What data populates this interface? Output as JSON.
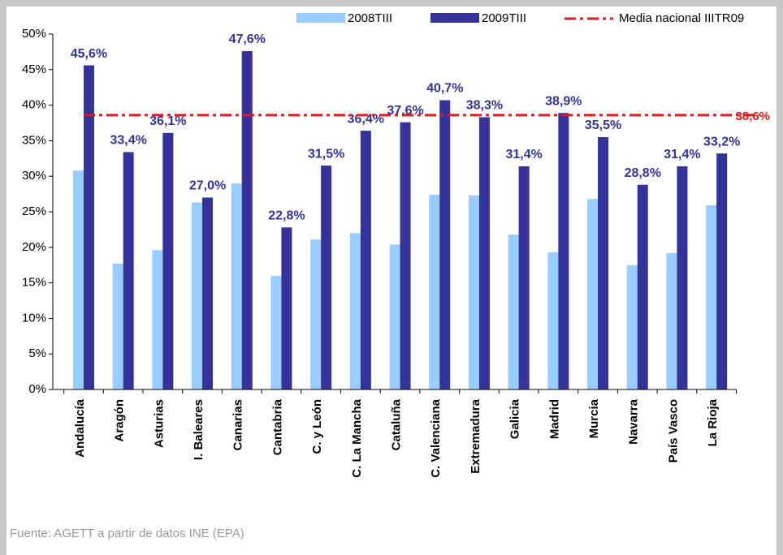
{
  "chart_data": {
    "type": "bar",
    "categories": [
      "Andalucía",
      "Aragón",
      "Asturias",
      "I. Baleares",
      "Canarias",
      "Cantabria",
      "C. y León",
      "C. La Mancha",
      "Cataluña",
      "C. Valenciana",
      "Extremadura",
      "Galicia",
      "Madrid",
      "Murcia",
      "Navarra",
      "País Vasco",
      "La Rioja"
    ],
    "series": [
      {
        "name": "2008TIII",
        "color": "#99ccff",
        "values": [
          30.8,
          17.7,
          19.6,
          26.3,
          29.0,
          16.0,
          21.1,
          22.0,
          20.4,
          27.4,
          27.3,
          21.8,
          19.3,
          26.8,
          17.5,
          19.2,
          25.9
        ]
      },
      {
        "name": "2009TIII",
        "color": "#333399",
        "values": [
          45.6,
          33.4,
          36.1,
          27.0,
          47.6,
          22.8,
          31.5,
          36.4,
          37.6,
          40.7,
          38.3,
          31.4,
          38.9,
          35.5,
          28.8,
          31.4,
          33.2
        ],
        "value_labels": [
          "45,6%",
          "33,4%",
          "36,1%",
          "27,0%",
          "47,6%",
          "22,8%",
          "31,5%",
          "36,4%",
          "37,6%",
          "40,7%",
          "38,3%",
          "31,4%",
          "38,9%",
          "35,5%",
          "28,8%",
          "31,4%",
          "33,2%"
        ]
      }
    ],
    "reference_line": {
      "name": "Media nacional IIITR09",
      "value": 38.6,
      "value_label": "38,6%",
      "color": "#e8161b"
    },
    "ylim": [
      0,
      50
    ],
    "yticks": [
      {
        "value": 0,
        "label": "0%"
      },
      {
        "value": 5,
        "label": "5%"
      },
      {
        "value": 10,
        "label": "10%"
      },
      {
        "value": 15,
        "label": "15%"
      },
      {
        "value": 20,
        "label": "20%"
      },
      {
        "value": 25,
        "label": "25%"
      },
      {
        "value": 30,
        "label": "30%"
      },
      {
        "value": 35,
        "label": "35%"
      },
      {
        "value": 40,
        "label": "40%"
      },
      {
        "value": 45,
        "label": "45%"
      },
      {
        "value": 50,
        "label": "50%"
      }
    ],
    "source": "Fuente: AGETT a partir de datos INE (EPA)"
  }
}
